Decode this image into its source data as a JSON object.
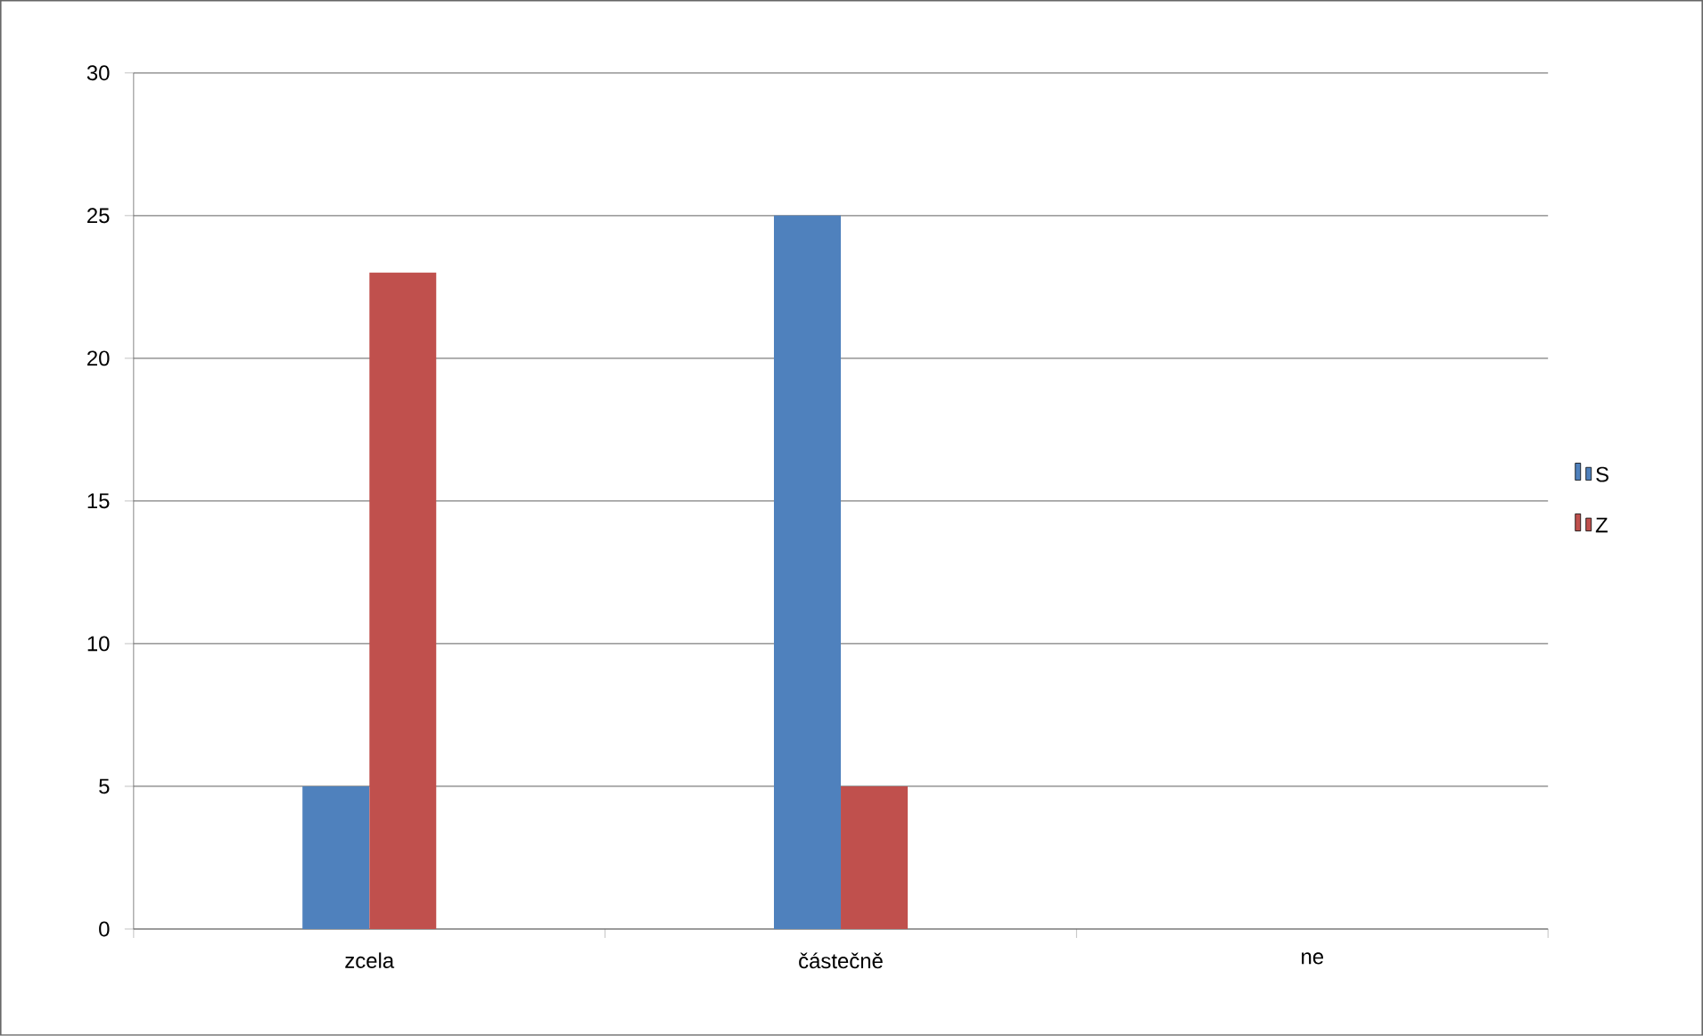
{
  "chart_data": {
    "type": "bar",
    "categories": [
      "zcela",
      "částečně",
      "ne"
    ],
    "series": [
      {
        "name": "S",
        "color": "#4f81bd",
        "values": [
          5,
          25,
          0
        ]
      },
      {
        "name": "Z",
        "color": "#c0504d",
        "values": [
          23,
          5,
          0
        ]
      }
    ],
    "ylim": [
      0,
      30
    ],
    "yticks": [
      0,
      5,
      10,
      15,
      20,
      25,
      30
    ],
    "grid": "y",
    "legend": "right"
  }
}
